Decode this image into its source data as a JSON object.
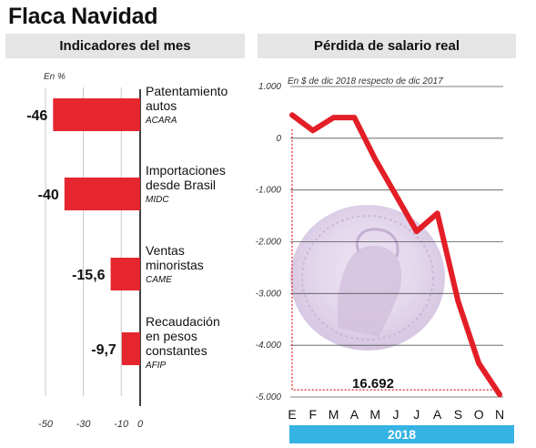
{
  "title": "Flaca Navidad",
  "left_panel": {
    "header": "Indicadores del mes",
    "unit_label": "En %"
  },
  "right_panel": {
    "header": "Pérdida de salario real",
    "subtitle": "En $ de dic 2018 respecto de dic 2017",
    "year_label": "2018",
    "callout": "16.692"
  },
  "colors": {
    "bar": "#e5262f",
    "line": "#e31e26",
    "year_band": "#35b3e3",
    "header_bg": "#e5e5e5"
  },
  "chart_data": [
    {
      "type": "bar",
      "orientation": "horizontal",
      "unit": "En %",
      "categories": [
        {
          "label": "Patentamiento autos",
          "source": "ACARA",
          "value": -46,
          "value_label": "-46"
        },
        {
          "label": "Importaciones desde Brasil",
          "source": "MIDC",
          "value": -40,
          "value_label": "-40"
        },
        {
          "label": "Ventas minoristas",
          "source": "CAME",
          "value": -15.6,
          "value_label": "-15,6"
        },
        {
          "label": "Recaudación en pesos constantes",
          "source": "AFIP",
          "value": -9.7,
          "value_label": "-9,7"
        }
      ],
      "xlim": [
        -50,
        0
      ],
      "xticks": [
        -50,
        -30,
        -10,
        0
      ],
      "xtick_labels": [
        "-50",
        "-30",
        "-10",
        "0"
      ],
      "grid": true
    },
    {
      "type": "line",
      "title": "Pérdida de salario real",
      "subtitle": "En $ de dic 2018 respecto de dic 2017",
      "x": [
        "E",
        "F",
        "M",
        "A",
        "M",
        "J",
        "J",
        "A",
        "S",
        "O",
        "N"
      ],
      "values": [
        450,
        150,
        400,
        400,
        -400,
        -1100,
        -1800,
        -1450,
        -3150,
        -4350,
        -4950
      ],
      "ylim": [
        -5000,
        1000
      ],
      "yticks": [
        1000,
        0,
        -1000,
        -2000,
        -3000,
        -4000,
        -5000
      ],
      "ytick_labels": [
        "1.000",
        "0",
        "-1.000",
        "-2.000",
        "-3.000",
        "-4.000",
        "-5.000"
      ],
      "annotation": "16.692",
      "grid": true
    }
  ]
}
